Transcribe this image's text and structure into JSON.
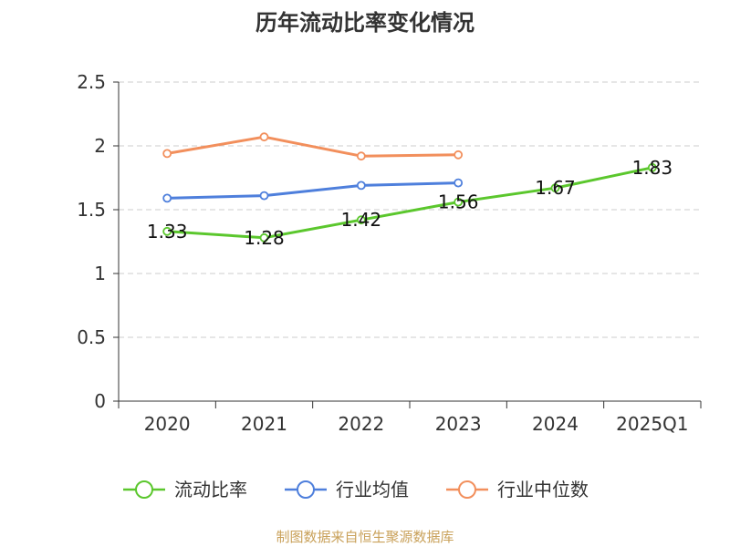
{
  "chart_data": {
    "type": "line",
    "title": "历年流动比率变化情况",
    "categories": [
      "2020",
      "2021",
      "2022",
      "2023",
      "2024",
      "2025Q1"
    ],
    "ylim": [
      0,
      2.5
    ],
    "yticks": [
      "0",
      "0.5",
      "1",
      "1.5",
      "2",
      "2.5"
    ],
    "grid": true,
    "legend": "bottom",
    "series": [
      {
        "name": "流动比率",
        "color": "#5bc72d",
        "values": [
          1.33,
          1.28,
          1.42,
          1.56,
          1.67,
          1.83
        ],
        "labels": [
          "1.33",
          "1.28",
          "1.42",
          "1.56",
          "1.67",
          "1.83"
        ]
      },
      {
        "name": "行业均值",
        "color": "#4e7fdc",
        "values": [
          1.59,
          1.61,
          1.69,
          1.71,
          null,
          null
        ]
      },
      {
        "name": "行业中位数",
        "color": "#f28f5c",
        "values": [
          1.94,
          2.07,
          1.92,
          1.93,
          null,
          null
        ]
      }
    ]
  },
  "source": "制图数据来自恒生聚源数据库"
}
